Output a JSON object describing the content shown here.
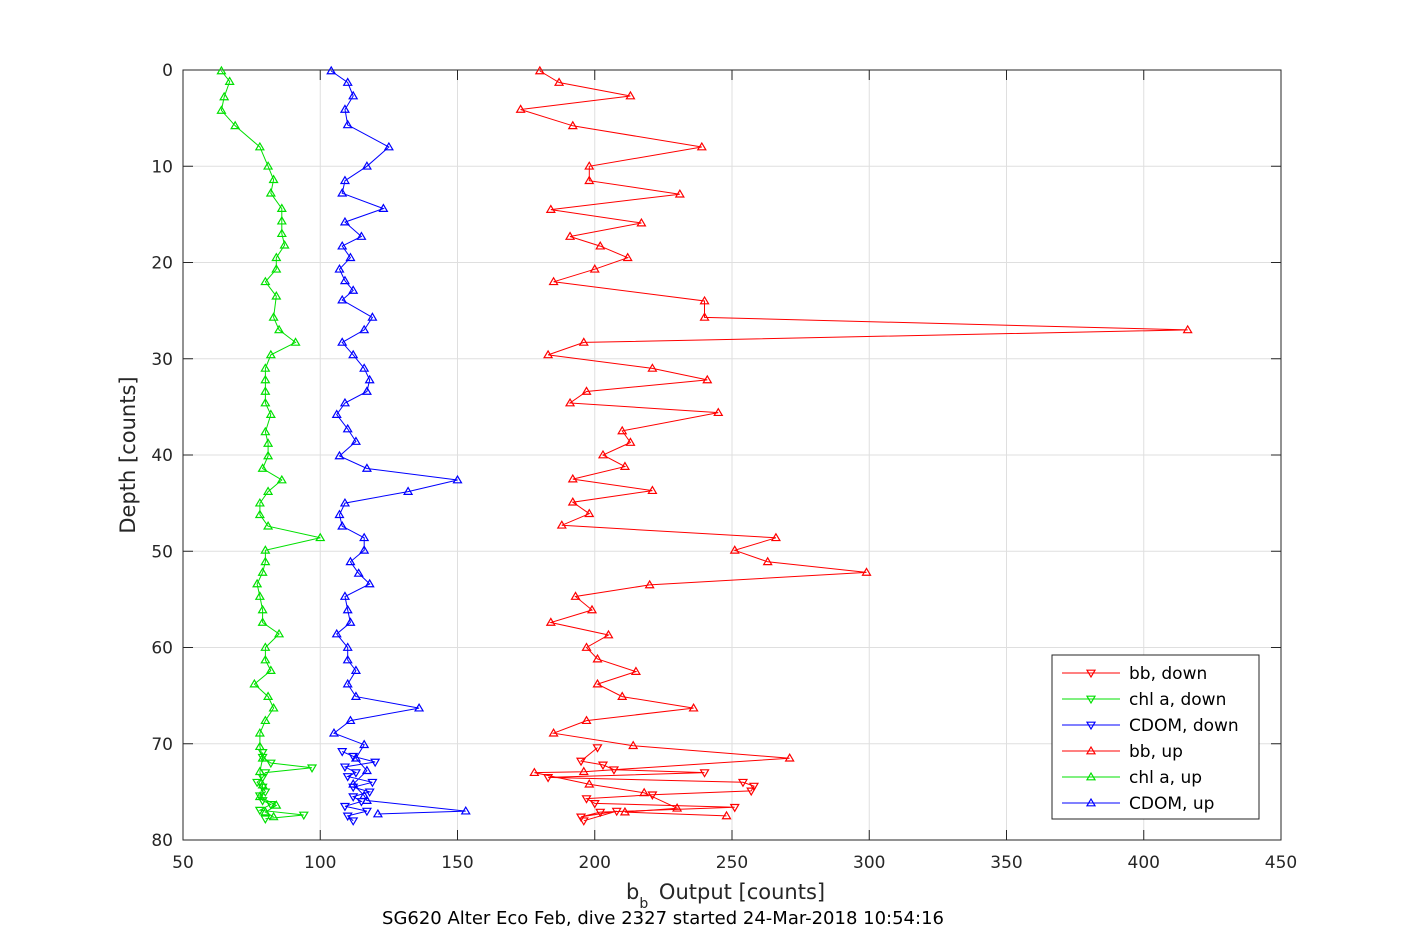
{
  "chart_data": {
    "type": "line",
    "xlabel_main": "b",
    "xlabel_sub": "b",
    "xlabel_rest": " Output [counts]",
    "ylabel": "Depth [counts]",
    "caption": "SG620 Alter Eco Feb, dive 2327 started 24-Mar-2018 10:54:16",
    "xlim": [
      50,
      450
    ],
    "ylim": [
      0,
      80
    ],
    "y_reversed": true,
    "grid": true,
    "legend_position": "bottom-right",
    "x_ticks": [
      "50",
      "100",
      "150",
      "200",
      "250",
      "300",
      "350",
      "400",
      "450"
    ],
    "y_ticks": [
      "0",
      "10",
      "20",
      "30",
      "40",
      "50",
      "60",
      "70",
      "80"
    ],
    "colors": {
      "bb": "#ff0000",
      "chl": "#00e000",
      "cdom": "#0000ff",
      "axis": "#262626",
      "grid": "#dfdfdf"
    },
    "series": [
      {
        "name": "bb, down",
        "color": "#ff0000",
        "marker": "triangle-down",
        "points": [
          [
            201,
            70.4
          ],
          [
            195,
            71.8
          ],
          [
            203,
            72.2
          ],
          [
            207,
            72.7
          ],
          [
            240,
            73.0
          ],
          [
            183,
            73.5
          ],
          [
            254,
            74.0
          ],
          [
            258,
            74.4
          ],
          [
            257,
            74.9
          ],
          [
            221,
            75.3
          ],
          [
            197,
            75.7
          ],
          [
            200,
            76.2
          ],
          [
            251,
            76.6
          ],
          [
            202,
            77.1
          ],
          [
            195,
            77.6
          ],
          [
            208,
            77.0
          ],
          [
            196,
            78.0
          ]
        ]
      },
      {
        "name": "chl a, down",
        "color": "#00e000",
        "marker": "triangle-down",
        "points": [
          [
            79,
            70.9
          ],
          [
            79,
            71.4
          ],
          [
            82,
            72.0
          ],
          [
            97,
            72.5
          ],
          [
            80,
            73.0
          ],
          [
            79,
            73.5
          ],
          [
            77,
            74.0
          ],
          [
            79,
            74.5
          ],
          [
            80,
            75.0
          ],
          [
            78,
            75.4
          ],
          [
            79,
            75.9
          ],
          [
            82,
            76.3
          ],
          [
            78,
            76.9
          ],
          [
            94,
            77.4
          ],
          [
            80,
            77.8
          ]
        ]
      },
      {
        "name": "CDOM, down",
        "color": "#0000ff",
        "marker": "triangle-down",
        "points": [
          [
            108,
            70.8
          ],
          [
            112,
            71.3
          ],
          [
            120,
            71.9
          ],
          [
            109,
            72.4
          ],
          [
            113,
            73.0
          ],
          [
            110,
            73.4
          ],
          [
            119,
            74.0
          ],
          [
            112,
            74.5
          ],
          [
            118,
            75.0
          ],
          [
            112,
            75.5
          ],
          [
            115,
            76.0
          ],
          [
            109,
            76.5
          ],
          [
            117,
            77.0
          ],
          [
            110,
            77.5
          ],
          [
            112,
            78.0
          ]
        ]
      },
      {
        "name": "bb, up",
        "color": "#ff0000",
        "marker": "triangle-up",
        "points": [
          [
            180,
            0.1
          ],
          [
            187,
            1.3
          ],
          [
            213,
            2.7
          ],
          [
            173,
            4.1
          ],
          [
            192,
            5.8
          ],
          [
            239,
            8.0
          ],
          [
            198,
            10.0
          ],
          [
            198,
            11.5
          ],
          [
            231,
            12.9
          ],
          [
            184,
            14.5
          ],
          [
            217,
            15.9
          ],
          [
            191,
            17.3
          ],
          [
            202,
            18.3
          ],
          [
            212,
            19.5
          ],
          [
            200,
            20.7
          ],
          [
            185,
            22.0
          ],
          [
            240,
            24.0
          ],
          [
            240,
            25.7
          ],
          [
            416,
            27.0
          ],
          [
            196,
            28.3
          ],
          [
            183,
            29.6
          ],
          [
            221,
            31.0
          ],
          [
            241,
            32.2
          ],
          [
            197,
            33.4
          ],
          [
            191,
            34.6
          ],
          [
            245,
            35.6
          ],
          [
            210,
            37.5
          ],
          [
            213,
            38.7
          ],
          [
            203,
            40.0
          ],
          [
            211,
            41.2
          ],
          [
            192,
            42.5
          ],
          [
            221,
            43.7
          ],
          [
            192,
            44.9
          ],
          [
            198,
            46.1
          ],
          [
            188,
            47.3
          ],
          [
            266,
            48.6
          ],
          [
            251,
            49.9
          ],
          [
            263,
            51.1
          ],
          [
            299,
            52.2
          ],
          [
            220,
            53.5
          ],
          [
            193,
            54.7
          ],
          [
            199,
            56.1
          ],
          [
            184,
            57.4
          ],
          [
            205,
            58.7
          ],
          [
            197,
            60.0
          ],
          [
            201,
            61.2
          ],
          [
            215,
            62.5
          ],
          [
            201,
            63.8
          ],
          [
            210,
            65.1
          ],
          [
            236,
            66.3
          ],
          [
            197,
            67.6
          ],
          [
            185,
            68.9
          ],
          [
            214,
            70.2
          ],
          [
            271,
            71.5
          ],
          [
            196,
            72.9
          ],
          [
            178,
            73.0
          ],
          [
            198,
            74.2
          ],
          [
            218,
            75.1
          ],
          [
            230,
            76.7
          ],
          [
            211,
            77.1
          ],
          [
            248,
            77.5
          ]
        ]
      },
      {
        "name": "chl a, up",
        "color": "#00e000",
        "marker": "triangle-up",
        "points": [
          [
            64,
            0.1
          ],
          [
            67,
            1.2
          ],
          [
            65,
            2.8
          ],
          [
            64,
            4.2
          ],
          [
            69,
            5.8
          ],
          [
            78,
            8.0
          ],
          [
            81,
            10.0
          ],
          [
            83,
            11.4
          ],
          [
            82,
            12.8
          ],
          [
            86,
            14.4
          ],
          [
            86,
            15.7
          ],
          [
            86,
            17.0
          ],
          [
            87,
            18.2
          ],
          [
            84,
            19.5
          ],
          [
            84,
            20.7
          ],
          [
            80,
            22.0
          ],
          [
            84,
            23.5
          ],
          [
            83,
            25.7
          ],
          [
            85,
            27.0
          ],
          [
            91,
            28.3
          ],
          [
            82,
            29.6
          ],
          [
            80,
            31.0
          ],
          [
            80,
            32.2
          ],
          [
            80,
            33.4
          ],
          [
            80,
            34.6
          ],
          [
            82,
            35.8
          ],
          [
            80,
            37.6
          ],
          [
            81,
            38.8
          ],
          [
            81,
            40.1
          ],
          [
            79,
            41.4
          ],
          [
            86,
            42.6
          ],
          [
            81,
            43.8
          ],
          [
            78,
            45.0
          ],
          [
            78,
            46.2
          ],
          [
            81,
            47.4
          ],
          [
            100,
            48.6
          ],
          [
            80,
            49.9
          ],
          [
            80,
            51.1
          ],
          [
            79,
            52.2
          ],
          [
            77,
            53.4
          ],
          [
            78,
            54.7
          ],
          [
            79,
            56.1
          ],
          [
            79,
            57.4
          ],
          [
            85,
            58.6
          ],
          [
            80,
            60.0
          ],
          [
            80,
            61.3
          ],
          [
            82,
            62.4
          ],
          [
            76,
            63.8
          ],
          [
            81,
            65.1
          ],
          [
            83,
            66.3
          ],
          [
            80,
            67.6
          ],
          [
            78,
            68.9
          ],
          [
            78,
            70.3
          ],
          [
            79,
            71.5
          ],
          [
            78,
            72.9
          ],
          [
            79,
            74.3
          ],
          [
            78,
            75.5
          ],
          [
            84,
            76.4
          ],
          [
            80,
            77.1
          ],
          [
            83,
            77.6
          ]
        ]
      },
      {
        "name": "CDOM, up",
        "color": "#0000ff",
        "marker": "triangle-up",
        "points": [
          [
            104,
            0.1
          ],
          [
            110,
            1.3
          ],
          [
            112,
            2.7
          ],
          [
            109,
            4.1
          ],
          [
            110,
            5.7
          ],
          [
            125,
            8.0
          ],
          [
            117,
            10.0
          ],
          [
            109,
            11.5
          ],
          [
            108,
            12.8
          ],
          [
            123,
            14.4
          ],
          [
            109,
            15.8
          ],
          [
            115,
            17.3
          ],
          [
            108,
            18.3
          ],
          [
            111,
            19.5
          ],
          [
            107,
            20.7
          ],
          [
            109,
            21.9
          ],
          [
            112,
            22.9
          ],
          [
            108,
            23.9
          ],
          [
            119,
            25.7
          ],
          [
            116,
            27.0
          ],
          [
            108,
            28.3
          ],
          [
            112,
            29.6
          ],
          [
            116,
            31.0
          ],
          [
            118,
            32.2
          ],
          [
            117,
            33.4
          ],
          [
            109,
            34.6
          ],
          [
            106,
            35.8
          ],
          [
            110,
            37.3
          ],
          [
            113,
            38.6
          ],
          [
            107,
            40.1
          ],
          [
            117,
            41.4
          ],
          [
            150,
            42.6
          ],
          [
            132,
            43.8
          ],
          [
            109,
            45.0
          ],
          [
            107,
            46.2
          ],
          [
            108,
            47.4
          ],
          [
            116,
            48.6
          ],
          [
            116,
            49.9
          ],
          [
            111,
            51.1
          ],
          [
            114,
            52.3
          ],
          [
            118,
            53.4
          ],
          [
            109,
            54.7
          ],
          [
            110,
            56.1
          ],
          [
            111,
            57.4
          ],
          [
            106,
            58.6
          ],
          [
            110,
            60.0
          ],
          [
            110,
            61.3
          ],
          [
            113,
            62.4
          ],
          [
            110,
            63.8
          ],
          [
            113,
            65.1
          ],
          [
            136,
            66.3
          ],
          [
            111,
            67.6
          ],
          [
            105,
            68.9
          ],
          [
            116,
            70.1
          ],
          [
            113,
            71.5
          ],
          [
            117,
            72.8
          ],
          [
            112,
            74.2
          ],
          [
            116,
            75.4
          ],
          [
            117,
            75.9
          ],
          [
            153,
            77.0
          ],
          [
            121,
            77.3
          ]
        ]
      }
    ]
  }
}
